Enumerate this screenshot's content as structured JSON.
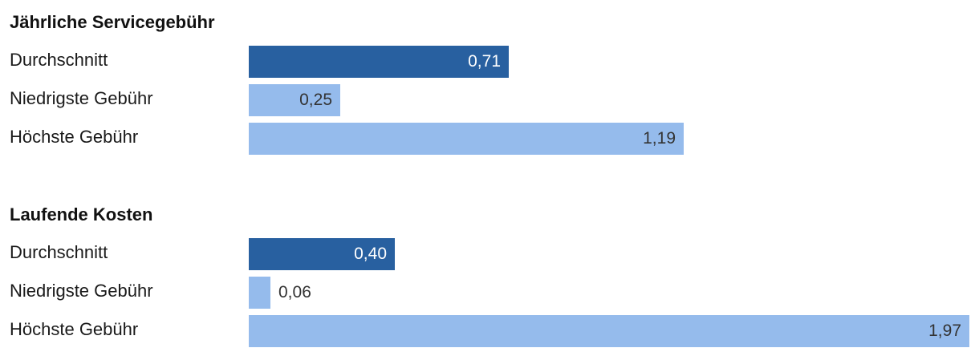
{
  "chart_data": {
    "type": "bar",
    "orientation": "horizontal",
    "colors": {
      "average": "#2860a0",
      "range": "#95bbec",
      "label_on_dark": "#ffffff",
      "label_on_light": "#333333"
    },
    "xlim": [
      0,
      1.97
    ],
    "groups": [
      {
        "title": "Jährliche Servicegebühr",
        "bars": [
          {
            "label": "Durchschnitt",
            "value": 0.71,
            "value_label": "0,71",
            "style": "average"
          },
          {
            "label": "Niedrigste Gebühr",
            "value": 0.25,
            "value_label": "0,25",
            "style": "range"
          },
          {
            "label": "Höchste Gebühr",
            "value": 1.19,
            "value_label": "1,19",
            "style": "range"
          }
        ]
      },
      {
        "title": "Laufende Kosten",
        "bars": [
          {
            "label": "Durchschnitt",
            "value": 0.4,
            "value_label": "0,40",
            "style": "average"
          },
          {
            "label": "Niedrigste Gebühr",
            "value": 0.06,
            "value_label": "0,06",
            "style": "range"
          },
          {
            "label": "Höchste Gebühr",
            "value": 1.97,
            "value_label": "1,97",
            "style": "range"
          }
        ]
      }
    ]
  }
}
